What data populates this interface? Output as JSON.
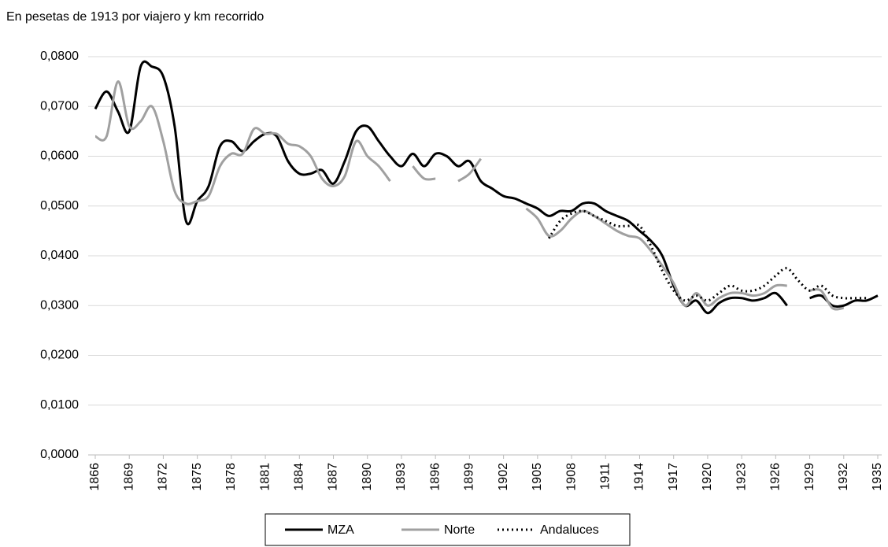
{
  "chart_data": {
    "type": "line",
    "title": "En pesetas de 1913 por viajero y km recorrido",
    "x": [
      1866,
      1867,
      1868,
      1869,
      1870,
      1871,
      1872,
      1873,
      1874,
      1875,
      1876,
      1877,
      1878,
      1879,
      1880,
      1881,
      1882,
      1883,
      1884,
      1885,
      1886,
      1887,
      1888,
      1889,
      1890,
      1891,
      1892,
      1893,
      1894,
      1895,
      1896,
      1897,
      1898,
      1899,
      1900,
      1901,
      1902,
      1903,
      1904,
      1905,
      1906,
      1907,
      1908,
      1909,
      1910,
      1911,
      1912,
      1913,
      1914,
      1915,
      1916,
      1917,
      1918,
      1919,
      1920,
      1921,
      1922,
      1923,
      1924,
      1925,
      1926,
      1927,
      1928,
      1929,
      1930,
      1931,
      1932,
      1933,
      1934,
      1935
    ],
    "series": [
      {
        "name": "MZA",
        "color": "#000000",
        "dash": "solid",
        "values": [
          0.0695,
          0.073,
          0.069,
          0.065,
          0.078,
          0.078,
          0.076,
          0.066,
          0.047,
          0.051,
          0.054,
          0.062,
          0.063,
          0.061,
          0.063,
          0.0645,
          0.064,
          0.059,
          0.0565,
          0.0565,
          0.0572,
          0.0545,
          0.059,
          0.065,
          0.066,
          0.063,
          0.06,
          0.058,
          0.0605,
          0.058,
          0.0605,
          0.06,
          0.058,
          0.059,
          0.055,
          0.0535,
          0.052,
          0.0515,
          0.0505,
          0.0495,
          0.048,
          0.049,
          0.049,
          0.0505,
          0.0505,
          0.049,
          0.048,
          0.047,
          0.045,
          0.043,
          0.04,
          0.034,
          0.03,
          0.031,
          0.0285,
          0.0305,
          0.0315,
          0.0315,
          0.031,
          0.0315,
          0.0325,
          0.03,
          null,
          0.0315,
          0.032,
          0.03,
          0.03,
          0.031,
          0.031,
          0.032
        ]
      },
      {
        "name": "Norte",
        "color": "#a0a0a0",
        "dash": "solid",
        "values": [
          0.064,
          0.064,
          0.075,
          0.066,
          0.067,
          0.07,
          0.063,
          0.053,
          0.0505,
          0.051,
          0.052,
          0.058,
          0.0605,
          0.0605,
          0.0655,
          0.0645,
          0.0645,
          0.0625,
          0.062,
          0.06,
          0.0555,
          0.054,
          0.056,
          0.063,
          0.06,
          0.058,
          0.055,
          null,
          0.058,
          0.0555,
          0.0555,
          null,
          0.055,
          0.0565,
          0.0595,
          null,
          null,
          null,
          0.0495,
          0.0475,
          0.044,
          0.045,
          0.0475,
          0.049,
          0.048,
          0.0465,
          0.045,
          0.044,
          0.0435,
          0.041,
          0.038,
          0.0345,
          0.03,
          0.0325,
          0.03,
          0.0315,
          0.0325,
          0.0325,
          0.032,
          0.0325,
          0.034,
          0.034,
          null,
          0.033,
          0.033,
          0.0295,
          0.0295,
          null,
          null,
          null
        ]
      },
      {
        "name": "Andaluces",
        "color": "#000000",
        "dash": "dotted",
        "values": [
          null,
          null,
          null,
          null,
          null,
          null,
          null,
          null,
          null,
          null,
          null,
          null,
          null,
          null,
          null,
          null,
          null,
          null,
          null,
          null,
          null,
          null,
          null,
          null,
          null,
          null,
          null,
          null,
          null,
          null,
          null,
          null,
          null,
          null,
          null,
          null,
          null,
          null,
          null,
          null,
          0.0435,
          0.047,
          0.0485,
          0.049,
          0.048,
          0.047,
          0.046,
          0.046,
          0.046,
          0.042,
          0.037,
          0.033,
          0.031,
          0.032,
          0.031,
          0.0325,
          0.034,
          0.033,
          0.033,
          0.034,
          0.036,
          0.0375,
          0.035,
          0.033,
          0.034,
          0.032,
          0.0315,
          0.0315,
          0.0315,
          null
        ]
      }
    ],
    "xlim": [
      1866,
      1935
    ],
    "xticks": [
      1866,
      1869,
      1872,
      1875,
      1878,
      1881,
      1884,
      1887,
      1890,
      1893,
      1896,
      1899,
      1902,
      1905,
      1908,
      1911,
      1914,
      1917,
      1920,
      1923,
      1926,
      1929,
      1932,
      1935
    ],
    "ylim": [
      0,
      0.08
    ],
    "yticks": [
      {
        "value": 0,
        "label": "0,0000"
      },
      {
        "value": 0.01,
        "label": "0,0100"
      },
      {
        "value": 0.02,
        "label": "0,0200"
      },
      {
        "value": 0.03,
        "label": "0,0300"
      },
      {
        "value": 0.04,
        "label": "0,0400"
      },
      {
        "value": 0.05,
        "label": "0,0500"
      },
      {
        "value": 0.06,
        "label": "0,0600"
      },
      {
        "value": 0.07,
        "label": "0,0700"
      },
      {
        "value": 0.08,
        "label": "0,0800"
      }
    ],
    "grid": true,
    "legend": "bottom"
  }
}
